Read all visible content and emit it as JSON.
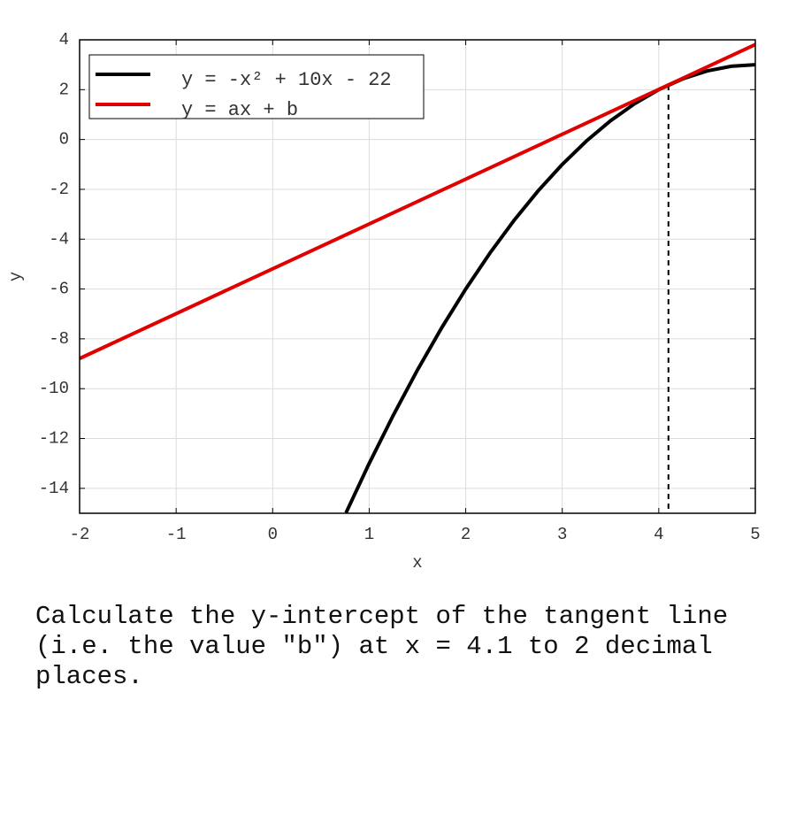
{
  "chart_data": {
    "type": "line",
    "xlabel": "x",
    "ylabel": "y",
    "xlim": [
      -2,
      5
    ],
    "ylim": [
      -15,
      4
    ],
    "xticks": [
      -2,
      -1,
      0,
      1,
      2,
      3,
      4,
      5
    ],
    "yticks": [
      -14,
      -12,
      -10,
      -8,
      -6,
      -4,
      -2,
      0,
      2,
      4
    ],
    "grid": true,
    "legend": "upper left",
    "series": [
      {
        "name": "y = -x² + 10x - 22",
        "color": "#000000",
        "x": [
          0.76,
          1,
          1.25,
          1.5,
          1.75,
          2,
          2.25,
          2.5,
          2.75,
          3,
          3.25,
          3.5,
          3.75,
          4,
          4.25,
          4.5,
          4.75,
          5
        ],
        "values": [
          -14.98,
          -13,
          -11.0625,
          -9.25,
          -7.5625,
          -6,
          -4.5625,
          -3.25,
          -2.0625,
          -1,
          -0.0625,
          0.75,
          1.4375,
          2,
          2.4375,
          2.75,
          2.9375,
          3
        ]
      },
      {
        "name": "y = ax + b",
        "color": "#e00000",
        "x": [
          -2,
          5
        ],
        "values": [
          -8.79,
          3.81
        ]
      }
    ],
    "tangent_point": {
      "x": 4.1,
      "y": 2.19
    }
  },
  "question": "Calculate the y-intercept of the tangent line (i.e. the value \"b\") at x = 4.1 to 2 decimal places."
}
